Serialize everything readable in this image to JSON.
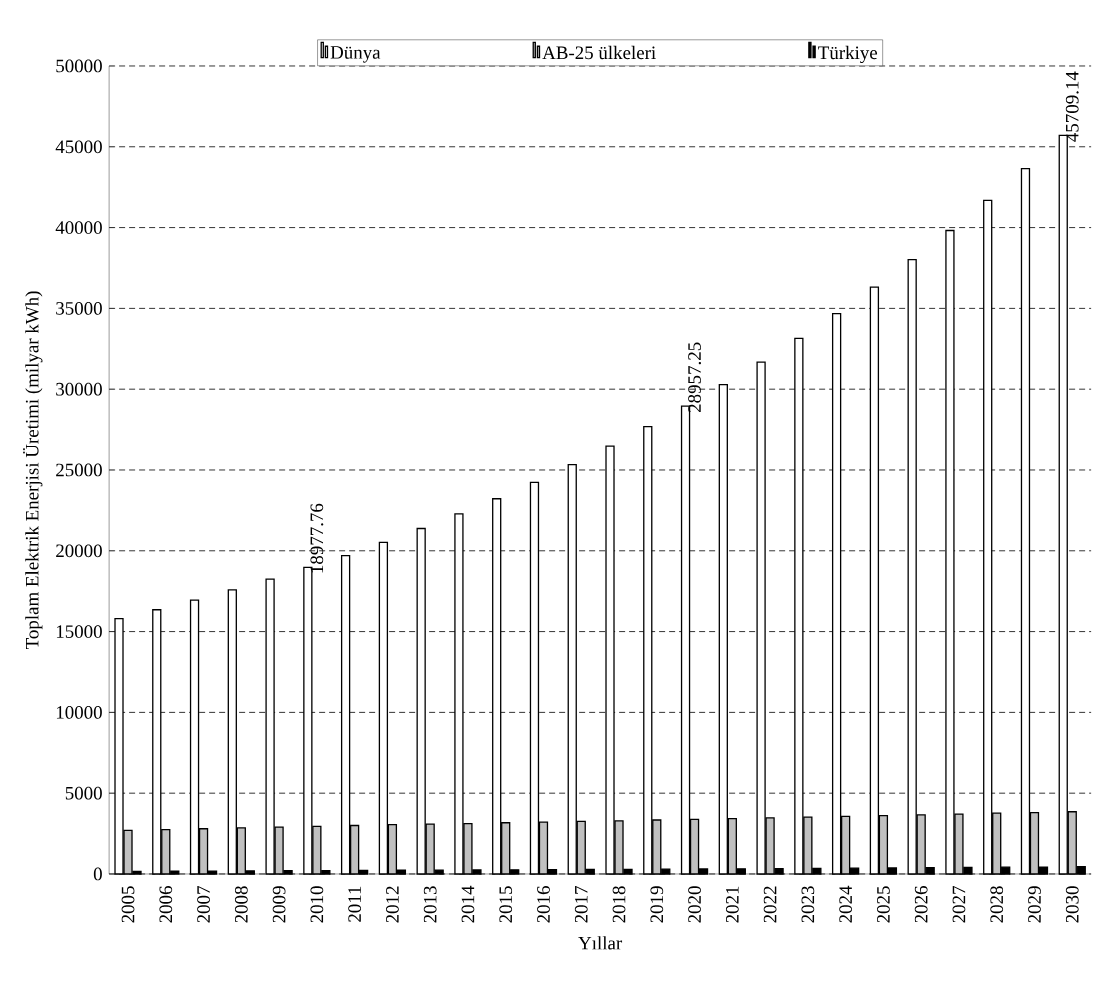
{
  "chart_data": {
    "type": "bar",
    "xlabel": "Yıllar",
    "ylabel": "Toplam Elektrik Enerjisi Üretimi (milyar kWh)",
    "categories": [
      "2005",
      "2006",
      "2007",
      "2008",
      "2009",
      "2010",
      "2011",
      "2012",
      "2013",
      "2014",
      "2015",
      "2016",
      "2017",
      "2018",
      "2019",
      "2020",
      "2021",
      "2022",
      "2023",
      "2024",
      "2025",
      "2026",
      "2027",
      "2028",
      "2029",
      "2030"
    ],
    "series": [
      {
        "name": "Dünya",
        "color": "#ffffff",
        "values": [
          15800,
          16350,
          16950,
          17580,
          18250,
          18977.76,
          19700,
          20520,
          21380,
          22280,
          23220,
          24230,
          25330,
          26480,
          27680,
          28957.25,
          30280,
          31680,
          33150,
          34680,
          36320,
          38020,
          39820,
          41680,
          43650,
          45709.14
        ],
        "value_labels": [
          null,
          null,
          null,
          null,
          null,
          "18977.76",
          null,
          null,
          null,
          null,
          null,
          null,
          null,
          null,
          null,
          "28957.25",
          null,
          null,
          null,
          null,
          null,
          null,
          null,
          null,
          null,
          "45709.14"
        ]
      },
      {
        "name": "AB-25 ülkeleri",
        "color": "#c0c0c0",
        "values": [
          2700,
          2750,
          2800,
          2850,
          2900,
          2950,
          3000,
          3050,
          3080,
          3120,
          3170,
          3210,
          3250,
          3290,
          3340,
          3380,
          3430,
          3470,
          3520,
          3570,
          3610,
          3660,
          3710,
          3760,
          3800,
          3850
        ]
      },
      {
        "name": "Türkiye",
        "color": "#000000",
        "values": [
          160,
          170,
          180,
          190,
          200,
          210,
          220,
          230,
          240,
          250,
          260,
          270,
          280,
          290,
          300,
          310,
          320,
          330,
          350,
          360,
          370,
          390,
          400,
          420,
          430,
          450
        ]
      }
    ],
    "ylim": [
      0,
      50000
    ],
    "yticks": [
      0,
      5000,
      10000,
      15000,
      20000,
      25000,
      30000,
      35000,
      40000,
      45000,
      50000
    ],
    "grid": "y",
    "legend": "top"
  }
}
